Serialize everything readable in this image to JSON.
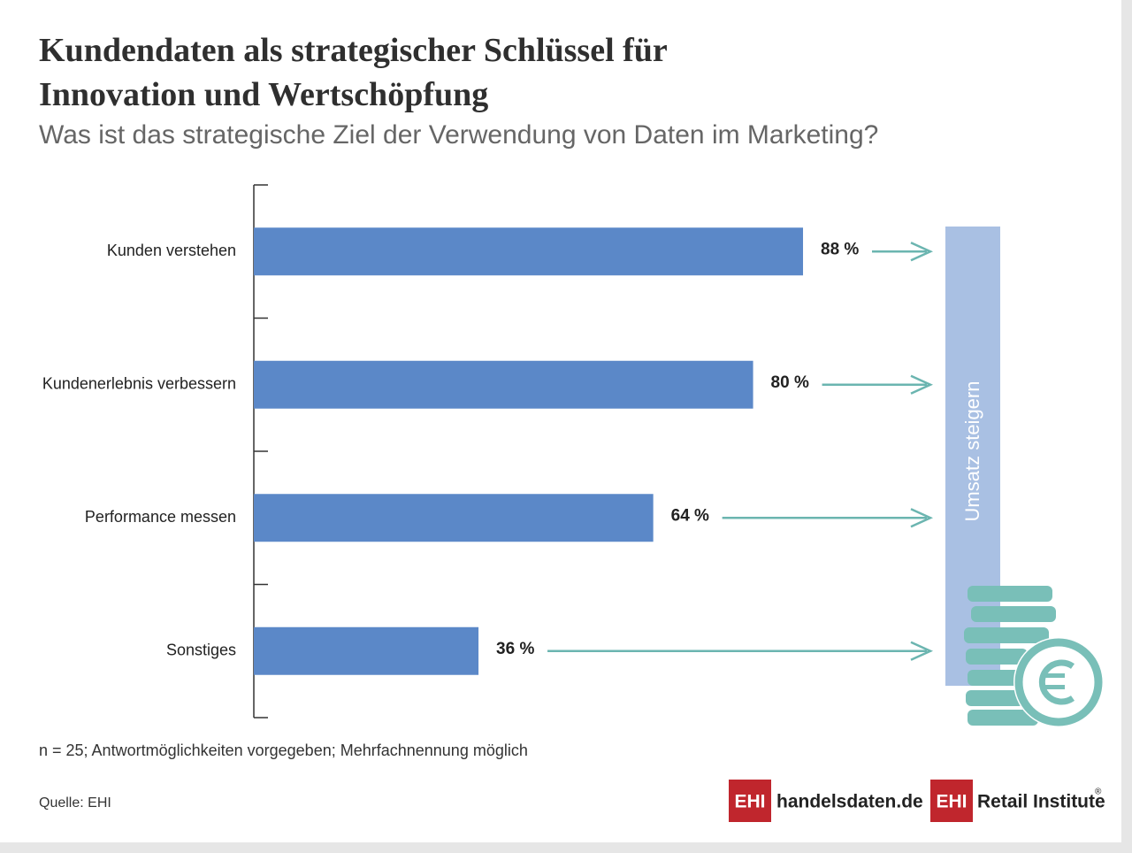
{
  "chart_data": {
    "type": "bar",
    "orientation": "horizontal",
    "title": "Kundendaten als strategischer Schlüssel für Innovation und Wertschöpfung",
    "subtitle": "Was ist das strategische Ziel der Verwendung von Daten im Marketing?",
    "categories": [
      "Kunden verstehen",
      "Kundenerlebnis verbessern",
      "Performance messen",
      "Sonstiges"
    ],
    "values": [
      88,
      80,
      64,
      36
    ],
    "value_labels": [
      "88 %",
      "80 %",
      "64 %",
      "36 %"
    ],
    "color": "#5b88c8",
    "xlim": [
      0,
      100
    ],
    "annotation": "Umsatz steigern",
    "footnote": "n = 25; Antwortmöglichkeiten vorgegeben; Mehrfachnennung möglich",
    "source": "Quelle: EHI"
  },
  "logos": {
    "brand1": "EHI",
    "site": "handelsdaten.de",
    "brand2": "EHI",
    "institute": "Retail Institute",
    "registered": "®"
  }
}
